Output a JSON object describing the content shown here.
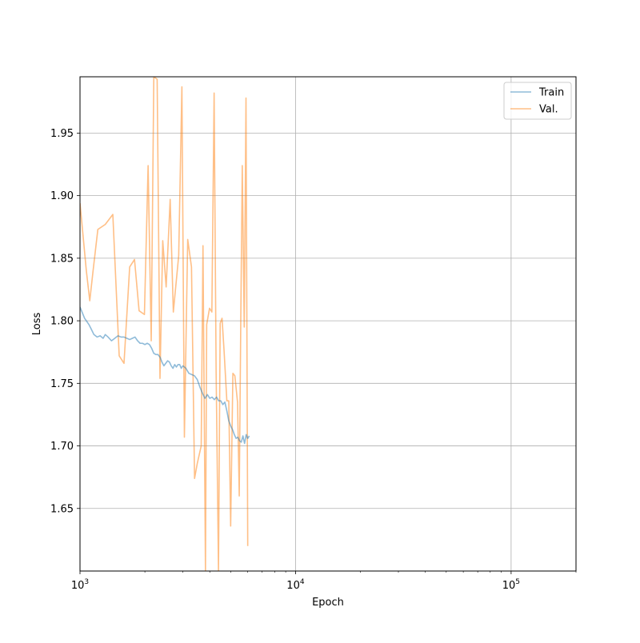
{
  "chart_data": {
    "type": "line",
    "title": "",
    "xlabel": "Epoch",
    "ylabel": "Loss",
    "xscale": "log",
    "xlim": [
      1000,
      200000
    ],
    "ylim": [
      1.6,
      1.995
    ],
    "grid": true,
    "legend_position": "top-right",
    "x_ticks": [
      {
        "value": 1000,
        "base": "10",
        "exp": "3"
      },
      {
        "value": 10000,
        "base": "10",
        "exp": "4"
      },
      {
        "value": 100000,
        "base": "10",
        "exp": "5"
      }
    ],
    "y_ticks": [
      {
        "value": 1.65,
        "label": "1.65"
      },
      {
        "value": 1.7,
        "label": "1.70"
      },
      {
        "value": 1.75,
        "label": "1.75"
      },
      {
        "value": 1.8,
        "label": "1.80"
      },
      {
        "value": 1.85,
        "label": "1.85"
      },
      {
        "value": 1.9,
        "label": "1.90"
      },
      {
        "value": 1.95,
        "label": "1.95"
      }
    ],
    "series": [
      {
        "name": "Train",
        "color": "#1f77b4",
        "opacity": 0.5,
        "points": [
          [
            1000,
            1.811
          ],
          [
            1050,
            1.802
          ],
          [
            1100,
            1.797
          ],
          [
            1130,
            1.793
          ],
          [
            1160,
            1.789
          ],
          [
            1200,
            1.787
          ],
          [
            1240,
            1.788
          ],
          [
            1280,
            1.786
          ],
          [
            1310,
            1.789
          ],
          [
            1350,
            1.787
          ],
          [
            1400,
            1.784
          ],
          [
            1450,
            1.786
          ],
          [
            1500,
            1.788
          ],
          [
            1550,
            1.787
          ],
          [
            1600,
            1.787
          ],
          [
            1650,
            1.786
          ],
          [
            1700,
            1.785
          ],
          [
            1750,
            1.786
          ],
          [
            1800,
            1.787
          ],
          [
            1850,
            1.784
          ],
          [
            1900,
            1.782
          ],
          [
            1950,
            1.782
          ],
          [
            2000,
            1.781
          ],
          [
            2050,
            1.782
          ],
          [
            2100,
            1.781
          ],
          [
            2150,
            1.778
          ],
          [
            2200,
            1.774
          ],
          [
            2250,
            1.773
          ],
          [
            2300,
            1.773
          ],
          [
            2350,
            1.771
          ],
          [
            2400,
            1.767
          ],
          [
            2450,
            1.764
          ],
          [
            2500,
            1.766
          ],
          [
            2550,
            1.768
          ],
          [
            2600,
            1.767
          ],
          [
            2650,
            1.764
          ],
          [
            2700,
            1.762
          ],
          [
            2750,
            1.765
          ],
          [
            2800,
            1.763
          ],
          [
            2850,
            1.765
          ],
          [
            2900,
            1.765
          ],
          [
            2950,
            1.762
          ],
          [
            3000,
            1.764
          ],
          [
            3100,
            1.762
          ],
          [
            3200,
            1.758
          ],
          [
            3300,
            1.757
          ],
          [
            3400,
            1.756
          ],
          [
            3500,
            1.753
          ],
          [
            3600,
            1.747
          ],
          [
            3700,
            1.742
          ],
          [
            3800,
            1.738
          ],
          [
            3900,
            1.741
          ],
          [
            4000,
            1.738
          ],
          [
            4100,
            1.739
          ],
          [
            4200,
            1.737
          ],
          [
            4300,
            1.739
          ],
          [
            4400,
            1.736
          ],
          [
            4500,
            1.736
          ],
          [
            4600,
            1.733
          ],
          [
            4700,
            1.735
          ],
          [
            4800,
            1.728
          ],
          [
            4900,
            1.72
          ],
          [
            5000,
            1.716
          ],
          [
            5100,
            1.713
          ],
          [
            5200,
            1.709
          ],
          [
            5300,
            1.706
          ],
          [
            5400,
            1.707
          ],
          [
            5500,
            1.704
          ],
          [
            5600,
            1.703
          ],
          [
            5700,
            1.708
          ],
          [
            5800,
            1.702
          ],
          [
            5900,
            1.709
          ],
          [
            6000,
            1.706
          ],
          [
            6100,
            1.708
          ]
        ]
      },
      {
        "name": "Val.",
        "color": "#ff7f0e",
        "opacity": 0.5,
        "points": [
          [
            1000,
            1.894
          ],
          [
            1070,
            1.84
          ],
          [
            1110,
            1.816
          ],
          [
            1150,
            1.84
          ],
          [
            1210,
            1.873
          ],
          [
            1310,
            1.877
          ],
          [
            1420,
            1.885
          ],
          [
            1520,
            1.772
          ],
          [
            1600,
            1.766
          ],
          [
            1700,
            1.843
          ],
          [
            1790,
            1.849
          ],
          [
            1880,
            1.808
          ],
          [
            1990,
            1.805
          ],
          [
            2070,
            1.924
          ],
          [
            2140,
            1.784
          ],
          [
            2200,
            1.995
          ],
          [
            2280,
            1.993
          ],
          [
            2350,
            1.754
          ],
          [
            2420,
            1.864
          ],
          [
            2510,
            1.827
          ],
          [
            2620,
            1.897
          ],
          [
            2710,
            1.807
          ],
          [
            2870,
            1.852
          ],
          [
            2970,
            1.987
          ],
          [
            3050,
            1.707
          ],
          [
            3160,
            1.865
          ],
          [
            3290,
            1.843
          ],
          [
            3400,
            1.674
          ],
          [
            3500,
            1.686
          ],
          [
            3650,
            1.7
          ],
          [
            3720,
            1.86
          ],
          [
            3820,
            1.6
          ],
          [
            3870,
            1.797
          ],
          [
            3990,
            1.81
          ],
          [
            4090,
            1.807
          ],
          [
            4190,
            1.982
          ],
          [
            4280,
            1.76
          ],
          [
            4390,
            1.6
          ],
          [
            4470,
            1.798
          ],
          [
            4560,
            1.802
          ],
          [
            4660,
            1.776
          ],
          [
            4800,
            1.736
          ],
          [
            4900,
            1.736
          ],
          [
            5000,
            1.636
          ],
          [
            5120,
            1.758
          ],
          [
            5230,
            1.756
          ],
          [
            5380,
            1.735
          ],
          [
            5480,
            1.66
          ],
          [
            5570,
            1.8
          ],
          [
            5660,
            1.924
          ],
          [
            5780,
            1.795
          ],
          [
            5890,
            1.978
          ],
          [
            6000,
            1.62
          ]
        ]
      }
    ]
  }
}
